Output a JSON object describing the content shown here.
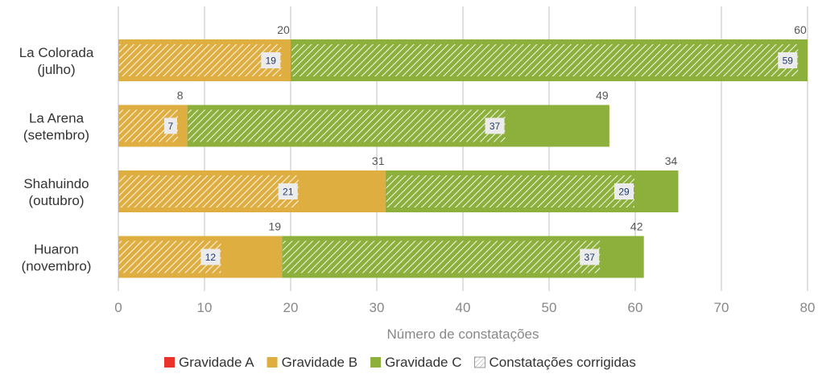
{
  "chart_data": {
    "type": "bar",
    "orientation": "horizontal",
    "stacked": true,
    "categories": [
      [
        "La Colorada",
        "(julho)"
      ],
      [
        "La Arena",
        "(setembro)"
      ],
      [
        "Shahuindo",
        "(outubro)"
      ],
      [
        "Huaron",
        "(novembro)"
      ]
    ],
    "series": [
      {
        "name": "Gravidade A",
        "color": "#e8322a",
        "values": [
          0,
          0,
          0,
          0
        ]
      },
      {
        "name": "Gravidade B",
        "color": "#dfae41",
        "values": [
          20,
          8,
          31,
          19
        ],
        "corrected": [
          19,
          7,
          21,
          12
        ]
      },
      {
        "name": "Gravidade C",
        "color": "#8db03c",
        "values": [
          60,
          49,
          34,
          42
        ],
        "corrected": [
          59,
          37,
          29,
          37
        ]
      }
    ],
    "corrected_legend": "Constatações corrigidas",
    "xlabel": "Número de constatações",
    "xlim": [
      0,
      80
    ],
    "xticks": [
      0,
      10,
      20,
      30,
      40,
      50,
      60,
      70,
      80
    ],
    "grid": true,
    "legend_position": "bottom"
  }
}
